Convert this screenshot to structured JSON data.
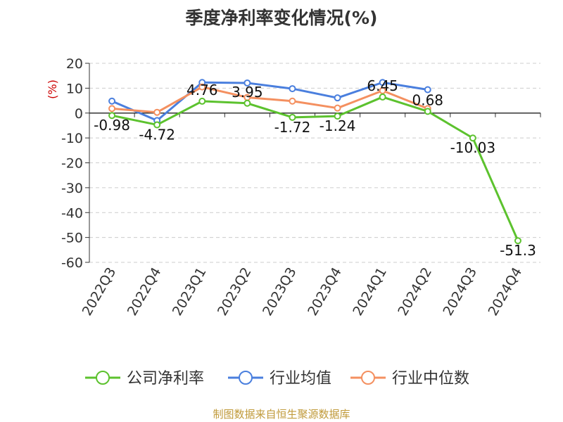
{
  "chart_data": {
    "type": "line",
    "title": "季度净利率变化情况(%)",
    "ylabel": "(%)",
    "ylim": [
      -60,
      20
    ],
    "yticks": [
      20,
      10,
      0,
      -10,
      -20,
      -30,
      -40,
      -50,
      -60
    ],
    "categories": [
      "2022Q3",
      "2022Q4",
      "2023Q1",
      "2023Q2",
      "2023Q3",
      "2023Q4",
      "2024Q1",
      "2024Q2",
      "2024Q3",
      "2024Q4"
    ],
    "series": [
      {
        "name": "公司净利率",
        "color": "#5cc22e",
        "values": [
          -0.98,
          -4.72,
          4.76,
          3.95,
          -1.72,
          -1.24,
          6.45,
          0.68,
          -10.03,
          -51.3
        ],
        "labels": [
          "-0.98",
          "-4.72",
          "4.76",
          "3.95",
          "-1.72",
          "-1.24",
          "6.45",
          "0.68",
          "-10.03",
          "-51.3"
        ]
      },
      {
        "name": "行业均值",
        "color": "#4a7fde",
        "values": [
          4.8,
          -3.0,
          12.3,
          12.1,
          9.8,
          6.1,
          12.3,
          9.4,
          null,
          null
        ]
      },
      {
        "name": "行业中位数",
        "color": "#f49060",
        "values": [
          1.8,
          0.3,
          10.5,
          6.3,
          4.8,
          2.0,
          9.0,
          1.8,
          null,
          null
        ]
      }
    ],
    "grid": true,
    "legend": "bottom"
  },
  "source": "制图数据来自恒生聚源数据库"
}
